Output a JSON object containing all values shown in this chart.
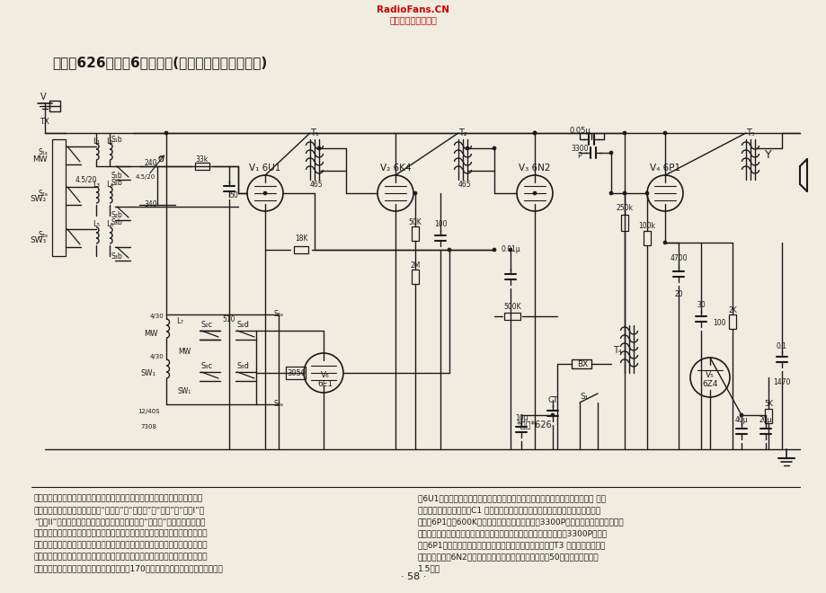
{
  "title": "牡丹牌626型交流6管三波段(原北京电子仪器厂产品)",
  "watermark_line1": "RadioFans.CN",
  "watermark_line2": "收音机爱好者资料库",
  "page_number": "· 58 ·",
  "background_color": "#f0ece0",
  "text_color": "#1a1a1a",
  "watermark_color": "#cc0000",
  "line_color": "#1a1a1a"
}
